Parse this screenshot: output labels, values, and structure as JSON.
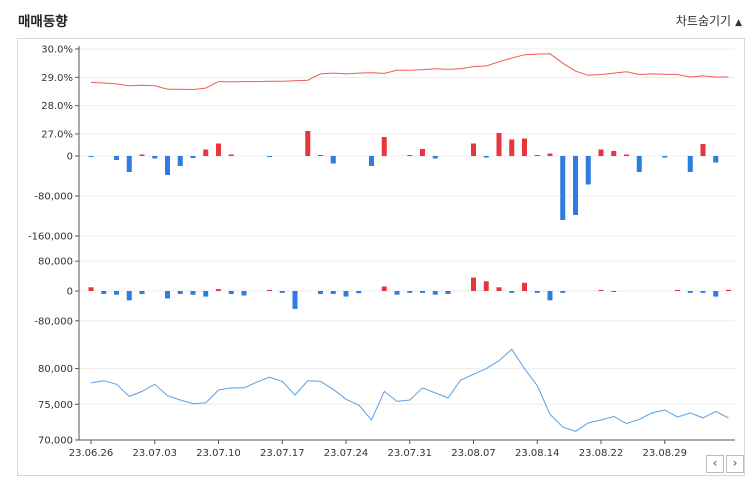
{
  "header": {
    "title": "매매동향",
    "toggle_label": "차트숨기기",
    "toggle_arrow": "▲"
  },
  "nav": {
    "prev_label": "‹",
    "next_label": "›"
  },
  "colors": {
    "ratio_line": "#f05a50",
    "price_line": "#5aa0e6",
    "buy": "#e8343c",
    "sell": "#2f7be0",
    "grid": "#ececec"
  },
  "chart_data": [
    {
      "type": "line",
      "ylim": [
        27.0,
        30.0
      ],
      "yticks": [
        "30.0%",
        "29.0%",
        "28.0%",
        "27.0%"
      ],
      "ytick_values": [
        30.0,
        29.0,
        28.0,
        27.0
      ],
      "values": [
        28.82,
        28.8,
        28.77,
        28.7,
        28.72,
        28.7,
        28.58,
        28.58,
        28.57,
        28.62,
        28.85,
        28.84,
        28.85,
        28.85,
        28.86,
        28.86,
        28.88,
        28.9,
        29.12,
        29.15,
        29.12,
        29.15,
        29.16,
        29.14,
        29.25,
        29.25,
        29.27,
        29.3,
        29.28,
        29.3,
        29.38,
        29.4,
        29.55,
        29.68,
        29.8,
        29.82,
        29.83,
        29.5,
        29.22,
        29.07,
        29.1,
        29.15,
        29.2,
        29.1,
        29.12,
        29.11,
        29.1,
        29.01,
        29.05,
        29.01,
        29.01
      ]
    },
    {
      "type": "bar",
      "ylim": [
        -180000,
        40000
      ],
      "yticks": [
        "0",
        "-80,000",
        "-160,000"
      ],
      "ytick_values": [
        0,
        -80000,
        -160000
      ],
      "values": [
        -2000,
        0,
        -8000,
        -32000,
        3000,
        -5000,
        -38000,
        -20000,
        -4000,
        13000,
        25000,
        3000,
        0,
        0,
        -2000,
        0,
        0,
        50000,
        2000,
        -15000,
        0,
        0,
        -20000,
        38000,
        0,
        2000,
        14000,
        -5000,
        0,
        0,
        25000,
        -3000,
        46000,
        33000,
        35000,
        2000,
        5000,
        -128000,
        -118000,
        -57000,
        13000,
        10000,
        3000,
        -32000,
        0,
        -3000,
        0,
        -32000,
        24000,
        -13000,
        0
      ]
    },
    {
      "type": "bar",
      "ylim": [
        -110000,
        110000
      ],
      "yticks": [
        "80,000",
        "0",
        "-80,000"
      ],
      "ytick_values": [
        80000,
        0,
        -80000
      ],
      "values": [
        10000,
        -8000,
        -10000,
        -25000,
        -8000,
        0,
        -20000,
        -8000,
        -10000,
        -15000,
        5000,
        -8000,
        -12000,
        0,
        3000,
        -5000,
        -48000,
        0,
        -8000,
        -8000,
        -15000,
        -6000,
        0,
        12000,
        -10000,
        -5000,
        -5000,
        -10000,
        -8000,
        0,
        36000,
        26000,
        10000,
        -5000,
        22000,
        -5000,
        -25000,
        -5000,
        0,
        0,
        3000,
        -2000,
        0,
        0,
        0,
        0,
        3000,
        -5000,
        -5000,
        -15000,
        3000
      ]
    },
    {
      "type": "line",
      "ylim": [
        70000,
        84000
      ],
      "yticks": [
        "80,000",
        "75,000",
        "70,000"
      ],
      "ytick_values": [
        80000,
        75000,
        70000
      ],
      "x_labels": [
        "23.06.26",
        "23.07.03",
        "23.07.10",
        "23.07.17",
        "23.07.24",
        "23.07.31",
        "23.08.07",
        "23.08.14",
        "23.08.22",
        "23.08.29"
      ],
      "x_label_index": [
        0,
        5,
        10,
        15,
        20,
        25,
        30,
        35,
        40,
        45
      ],
      "values": [
        78000,
        78300,
        77800,
        76100,
        76800,
        77800,
        76200,
        75600,
        75100,
        75200,
        77000,
        77300,
        77300,
        78100,
        78800,
        78200,
        76300,
        78300,
        78200,
        77100,
        75700,
        74900,
        72800,
        76800,
        75400,
        75600,
        77300,
        76600,
        75900,
        78400,
        79200,
        80000,
        81100,
        82700,
        80000,
        77600,
        73600,
        71800,
        71200,
        72400,
        72800,
        73300,
        72300,
        72900,
        73800,
        74200,
        73200,
        73800,
        73100,
        74000,
        73100
      ]
    }
  ]
}
